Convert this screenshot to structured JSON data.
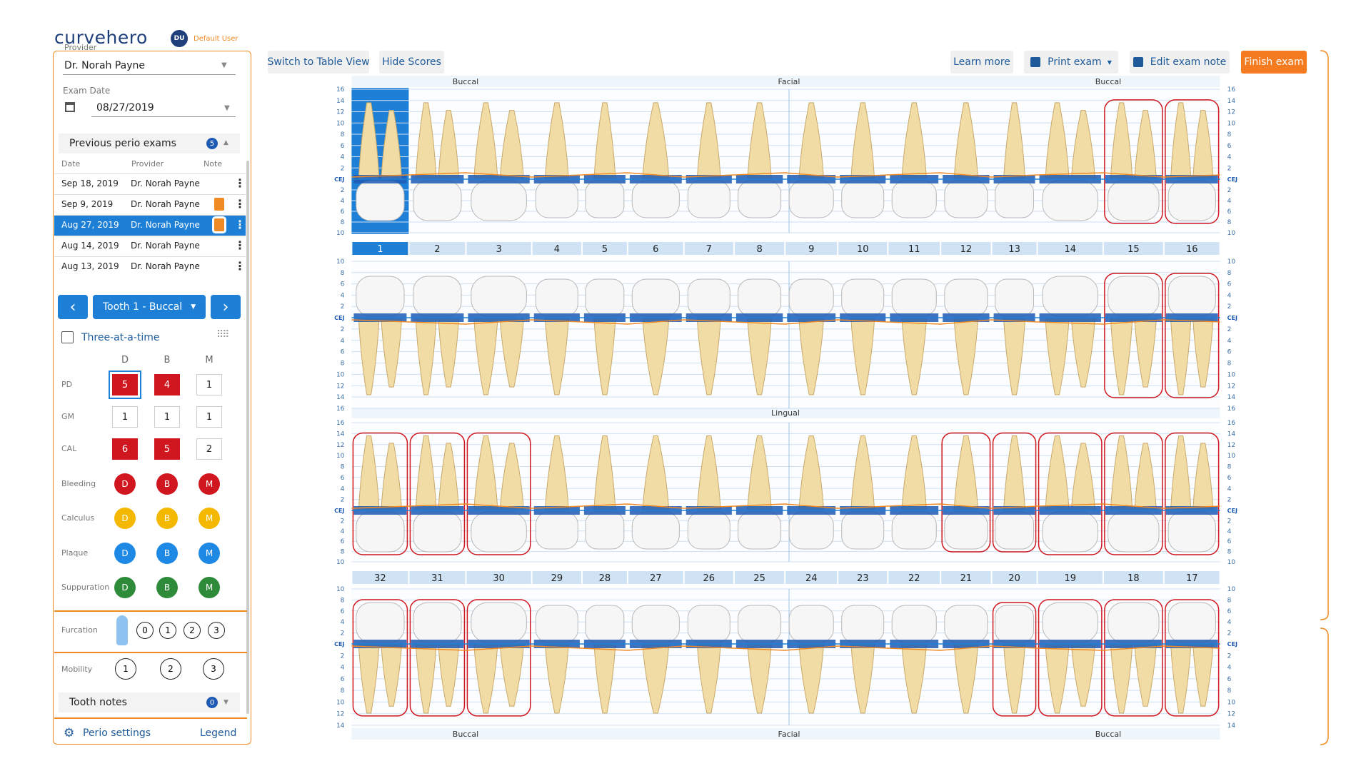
{
  "header": {
    "brand": "curvehero",
    "avatar": "DU",
    "user": "Default User"
  },
  "sidebar": {
    "provider_label": "Provider",
    "provider": "Dr. Norah Payne",
    "exam_date_label": "Exam Date",
    "exam_date": "08/27/2019",
    "previous_title": "Previous perio exams",
    "previous_count": 5,
    "columns": [
      "Date",
      "Provider",
      "Note"
    ],
    "exams": [
      {
        "date": "Sep 18, 2019",
        "provider": "Dr. Norah Payne"
      },
      {
        "date": "Sep 9, 2019",
        "provider": "Dr. Norah Payne"
      },
      {
        "date": "Aug 27, 2019",
        "provider": "Dr. Norah Payne"
      },
      {
        "date": "Aug 14, 2019",
        "provider": "Dr. Norah Payne"
      },
      {
        "date": "Aug 13, 2019",
        "provider": "Dr. Norah Payne"
      }
    ],
    "tooth_selector": "Tooth 1 - Buccal",
    "three_at_a_time": "Three-at-a-time",
    "sites": [
      "D",
      "B",
      "M"
    ],
    "rows": [
      {
        "label": "PD",
        "values": [
          5,
          4,
          1
        ]
      },
      {
        "label": "GM",
        "values": [
          1,
          1,
          1
        ]
      },
      {
        "label": "CAL",
        "values": [
          6,
          5,
          2
        ]
      }
    ],
    "indicators": [
      {
        "label": "Bleeding",
        "color": "#d0161e"
      },
      {
        "label": "Calculus",
        "color": "#f5b800"
      },
      {
        "label": "Plaque",
        "color": "#1e88e5"
      },
      {
        "label": "Suppuration",
        "color": "#2e8b3a"
      }
    ],
    "furcation_label": "Furcation",
    "furcation": [
      0,
      1,
      2,
      3
    ],
    "mobility_label": "Mobility",
    "mobility": [
      1,
      2,
      3
    ],
    "tooth_notes": "Tooth notes",
    "notes_count": 0,
    "settings": "Perio settings",
    "legend": "Legend"
  },
  "toolbar": {
    "left": [
      "Switch to Table View",
      "Hide Scores"
    ],
    "right": [
      "Learn more",
      "Print exam",
      "Edit exam note",
      "Finish exam"
    ]
  },
  "chart": {
    "upper_labels": [
      "Buccal",
      "Facial",
      "Buccal"
    ],
    "lingual": "Lingual",
    "lower_labels": [
      "Buccal",
      "Facial",
      "Buccal"
    ],
    "cej": "CEJ",
    "upper_teeth": [
      1,
      2,
      3,
      4,
      5,
      6,
      7,
      8,
      9,
      10,
      11,
      12,
      13,
      14,
      15,
      16
    ],
    "lower_teeth": [
      32,
      31,
      30,
      29,
      28,
      27,
      26,
      25,
      24,
      23,
      22,
      21,
      20,
      19,
      18,
      17
    ],
    "panels": [
      {
        "above": [
          16,
          14,
          12,
          10,
          8,
          6,
          4,
          2
        ],
        "below": [
          2,
          4,
          6,
          8,
          10
        ]
      },
      {
        "above": [
          10,
          8,
          6,
          4,
          2
        ],
        "below": [
          2,
          4,
          6,
          8,
          10,
          12,
          14,
          16
        ]
      },
      {
        "above": [
          16,
          14,
          12,
          10,
          8,
          6,
          4,
          2
        ],
        "below": [
          2,
          4,
          6,
          8,
          10
        ]
      },
      {
        "above": [
          10,
          8,
          6,
          4,
          2
        ],
        "below": [
          2,
          4,
          6,
          8,
          10,
          12,
          14
        ]
      }
    ]
  }
}
